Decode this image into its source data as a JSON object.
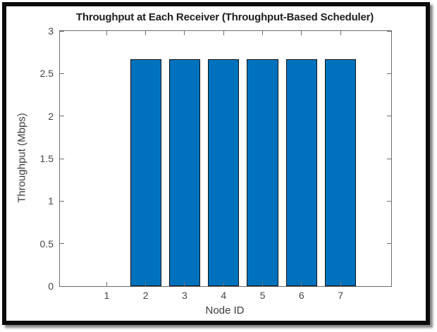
{
  "chart_data": {
    "type": "bar",
    "title": "Throughput at Each Receiver (Throughput-Based Scheduler)",
    "xlabel": "Node ID",
    "ylabel": "Throughput (Mbps)",
    "categories": [
      1,
      2,
      3,
      4,
      5,
      6,
      7
    ],
    "values": [
      0,
      2.67,
      2.67,
      2.67,
      2.67,
      2.67,
      2.67
    ],
    "xtick_labels": [
      "1",
      "2",
      "3",
      "4",
      "5",
      "6",
      "7"
    ],
    "yticks": [
      0,
      0.5,
      1,
      1.5,
      2,
      2.5,
      3
    ],
    "ytick_labels": [
      "0",
      "0.5",
      "1",
      "1.5",
      "2",
      "2.5",
      "3"
    ],
    "xlim": [
      -0.2,
      8.3
    ],
    "ylim": [
      0,
      3
    ],
    "bar_width": 0.8,
    "grid": false,
    "legend": null,
    "tick_direction": "in",
    "box": true,
    "colors": {
      "bar_fill": "#0072BD",
      "bar_edge": "#111111",
      "axis": "#6e6e6e",
      "tick_text": "#474747",
      "title_text": "#1f1f1f",
      "frame_border": "#0a0a0a"
    }
  }
}
